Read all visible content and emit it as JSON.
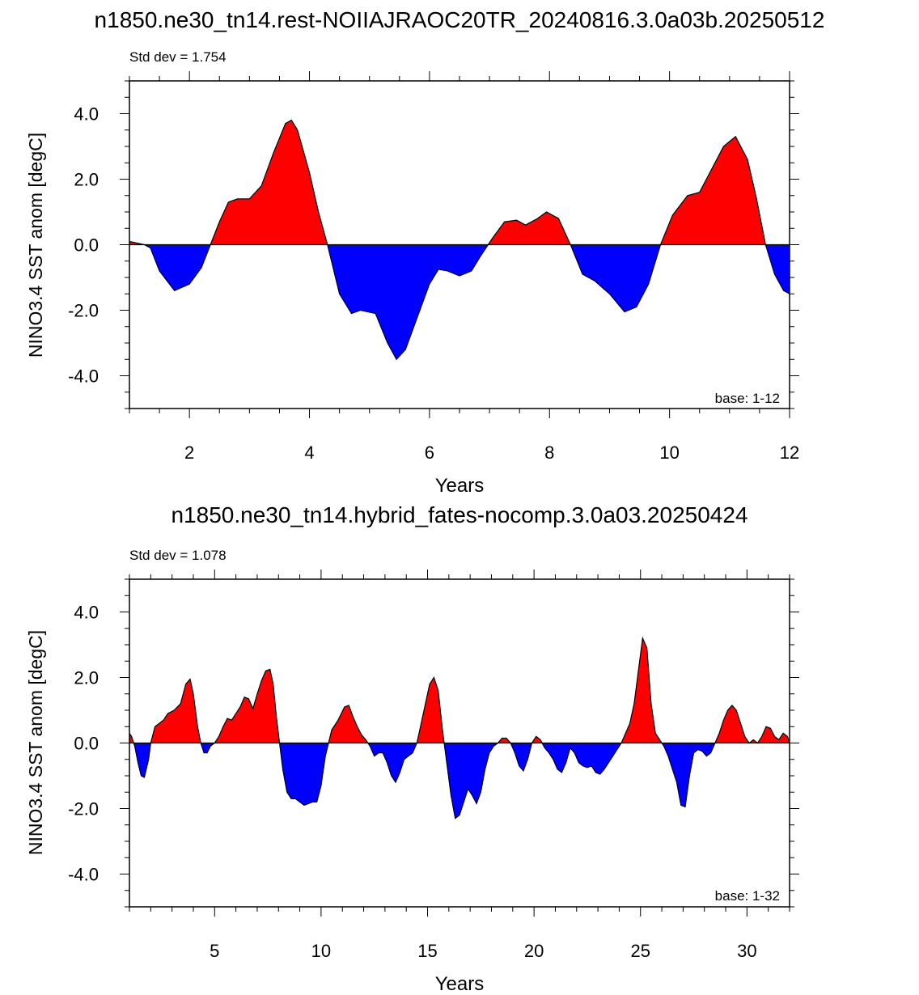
{
  "colors": {
    "positive": "#ff0000",
    "negative": "#0000ff",
    "axis": "#000000"
  },
  "chart_data": [
    {
      "type": "area",
      "title": "n1850.ne30_tn14.rest-NOIIAJRAOC20TR_20240816.3.0a03b.20250512",
      "stat_label": "Std dev = 1.754",
      "base_label": "base: 1-12",
      "xlabel": "Years",
      "ylabel": "NINO3.4 SST anom [degC]",
      "xlim": [
        1,
        12
      ],
      "ylim": [
        -5,
        5
      ],
      "x_ticks": [
        2,
        4,
        6,
        8,
        10,
        12
      ],
      "x_tick_labels": [
        "2",
        "4",
        "6",
        "8",
        "10",
        "12"
      ],
      "y_ticks": [
        -4,
        -2,
        0,
        2,
        4
      ],
      "y_tick_labels": [
        "-4.0",
        "-2.0",
        "0.0",
        "2.0",
        "4.0"
      ],
      "x": [
        1.0,
        1.25,
        1.35,
        1.5,
        1.75,
        2.0,
        2.2,
        2.35,
        2.5,
        2.65,
        2.8,
        3.0,
        3.2,
        3.4,
        3.6,
        3.7,
        3.8,
        4.0,
        4.15,
        4.3,
        4.5,
        4.7,
        4.85,
        5.1,
        5.3,
        5.45,
        5.6,
        5.8,
        6.0,
        6.15,
        6.3,
        6.5,
        6.7,
        6.85,
        7.05,
        7.25,
        7.45,
        7.6,
        7.8,
        7.95,
        8.15,
        8.35,
        8.55,
        8.75,
        9.0,
        9.25,
        9.45,
        9.65,
        9.85,
        10.05,
        10.3,
        10.5,
        10.7,
        10.9,
        11.1,
        11.3,
        11.45,
        11.6,
        11.75,
        11.9,
        12.0
      ],
      "values": [
        0.1,
        0.0,
        -0.1,
        -0.8,
        -1.4,
        -1.2,
        -0.7,
        0.0,
        0.7,
        1.3,
        1.4,
        1.4,
        1.8,
        2.8,
        3.7,
        3.8,
        3.5,
        2.2,
        1.0,
        0.0,
        -1.5,
        -2.1,
        -2.0,
        -2.1,
        -3.0,
        -3.5,
        -3.2,
        -2.2,
        -1.2,
        -0.75,
        -0.8,
        -0.95,
        -0.8,
        -0.35,
        0.2,
        0.7,
        0.75,
        0.6,
        0.8,
        1.0,
        0.8,
        0.0,
        -0.9,
        -1.1,
        -1.5,
        -2.05,
        -1.9,
        -1.2,
        0.0,
        0.9,
        1.5,
        1.6,
        2.3,
        3.0,
        3.3,
        2.6,
        1.4,
        0.0,
        -0.9,
        -1.4,
        -1.5
      ]
    },
    {
      "type": "area",
      "title": "n1850.ne30_tn14.hybrid_fates-nocomp.3.0a03.20250424",
      "stat_label": "Std dev = 1.078",
      "base_label": "base: 1-32",
      "xlabel": "Years",
      "ylabel": "NINO3.4 SST anom [degC]",
      "xlim": [
        1,
        32
      ],
      "ylim": [
        -5,
        5
      ],
      "x_ticks": [
        5,
        10,
        15,
        20,
        25,
        30
      ],
      "x_tick_labels": [
        "5",
        "10",
        "15",
        "20",
        "25",
        "30"
      ],
      "y_ticks": [
        -4,
        -2,
        0,
        2,
        4
      ],
      "y_tick_labels": [
        "-4.0",
        "-2.0",
        "0.0",
        "2.0",
        "4.0"
      ],
      "x": [
        1.0,
        1.1,
        1.25,
        1.4,
        1.55,
        1.7,
        1.9,
        2.0,
        2.2,
        2.4,
        2.6,
        2.8,
        3.1,
        3.4,
        3.65,
        3.85,
        4.0,
        4.2,
        4.35,
        4.5,
        4.65,
        4.8,
        5.0,
        5.2,
        5.4,
        5.6,
        5.8,
        6.0,
        6.2,
        6.4,
        6.6,
        6.8,
        7.0,
        7.2,
        7.4,
        7.6,
        7.75,
        7.9,
        8.05,
        8.2,
        8.4,
        8.6,
        8.8,
        9.0,
        9.2,
        9.4,
        9.6,
        9.8,
        10.0,
        10.2,
        10.5,
        10.8,
        11.1,
        11.3,
        11.5,
        11.7,
        11.9,
        12.1,
        12.3,
        12.5,
        12.7,
        12.9,
        13.1,
        13.3,
        13.5,
        13.7,
        13.9,
        14.1,
        14.3,
        14.5,
        14.7,
        14.9,
        15.1,
        15.3,
        15.5,
        15.7,
        15.9,
        16.1,
        16.3,
        16.5,
        16.7,
        16.9,
        17.1,
        17.3,
        17.5,
        17.7,
        17.9,
        18.1,
        18.3,
        18.5,
        18.7,
        18.9,
        19.1,
        19.3,
        19.5,
        19.7,
        19.9,
        20.1,
        20.3,
        20.5,
        20.7,
        20.9,
        21.1,
        21.3,
        21.5,
        21.7,
        21.9,
        22.1,
        22.3,
        22.5,
        22.7,
        22.9,
        23.1,
        23.3,
        23.5,
        23.7,
        23.9,
        24.1,
        24.3,
        24.5,
        24.7,
        24.9,
        25.1,
        25.3,
        25.5,
        25.7,
        25.9,
        26.1,
        26.3,
        26.5,
        26.7,
        26.9,
        27.1,
        27.3,
        27.5,
        27.7,
        27.9,
        28.1,
        28.3,
        28.5,
        28.7,
        28.9,
        29.1,
        29.3,
        29.5,
        29.7,
        29.9,
        30.1,
        30.3,
        30.5,
        30.7,
        30.9,
        31.1,
        31.3,
        31.5,
        31.7,
        31.9,
        32.0
      ],
      "values": [
        0.3,
        0.2,
        -0.1,
        -0.6,
        -1.0,
        -1.05,
        -0.5,
        0.0,
        0.5,
        0.6,
        0.7,
        0.9,
        1.0,
        1.2,
        1.8,
        1.95,
        1.5,
        0.5,
        0.0,
        -0.3,
        -0.3,
        -0.1,
        0.0,
        0.2,
        0.5,
        0.75,
        0.7,
        0.9,
        1.1,
        1.4,
        1.35,
        1.05,
        1.5,
        1.9,
        2.2,
        2.25,
        1.8,
        0.8,
        0.0,
        -0.8,
        -1.5,
        -1.7,
        -1.7,
        -1.8,
        -1.9,
        -1.85,
        -1.8,
        -1.8,
        -1.3,
        -0.4,
        0.4,
        0.7,
        1.1,
        1.15,
        0.8,
        0.5,
        0.25,
        0.1,
        -0.1,
        -0.4,
        -0.3,
        -0.3,
        -0.6,
        -1.0,
        -1.2,
        -0.9,
        -0.5,
        -0.4,
        -0.3,
        0.0,
        0.6,
        1.2,
        1.8,
        2.0,
        1.6,
        0.4,
        -0.6,
        -1.6,
        -2.3,
        -2.2,
        -1.8,
        -1.4,
        -1.6,
        -1.85,
        -1.5,
        -0.8,
        -0.3,
        -0.1,
        0.0,
        0.15,
        0.15,
        0.0,
        -0.3,
        -0.7,
        -0.85,
        -0.5,
        0.0,
        0.2,
        0.1,
        -0.15,
        -0.3,
        -0.5,
        -0.8,
        -0.9,
        -0.6,
        -0.15,
        -0.3,
        -0.6,
        -0.7,
        -0.75,
        -0.7,
        -0.9,
        -0.95,
        -0.8,
        -0.6,
        -0.4,
        -0.2,
        0.0,
        0.3,
        0.6,
        1.2,
        2.2,
        3.2,
        2.9,
        1.2,
        0.3,
        0.1,
        -0.1,
        -0.4,
        -0.8,
        -1.2,
        -1.9,
        -1.95,
        -1.0,
        -0.3,
        -0.2,
        -0.25,
        -0.4,
        -0.3,
        0.0,
        0.3,
        0.7,
        1.0,
        1.15,
        1.0,
        0.6,
        0.2,
        0.0,
        0.1,
        0.0,
        0.2,
        0.5,
        0.45,
        0.2,
        0.1,
        0.3,
        0.2,
        0.0
      ]
    }
  ]
}
